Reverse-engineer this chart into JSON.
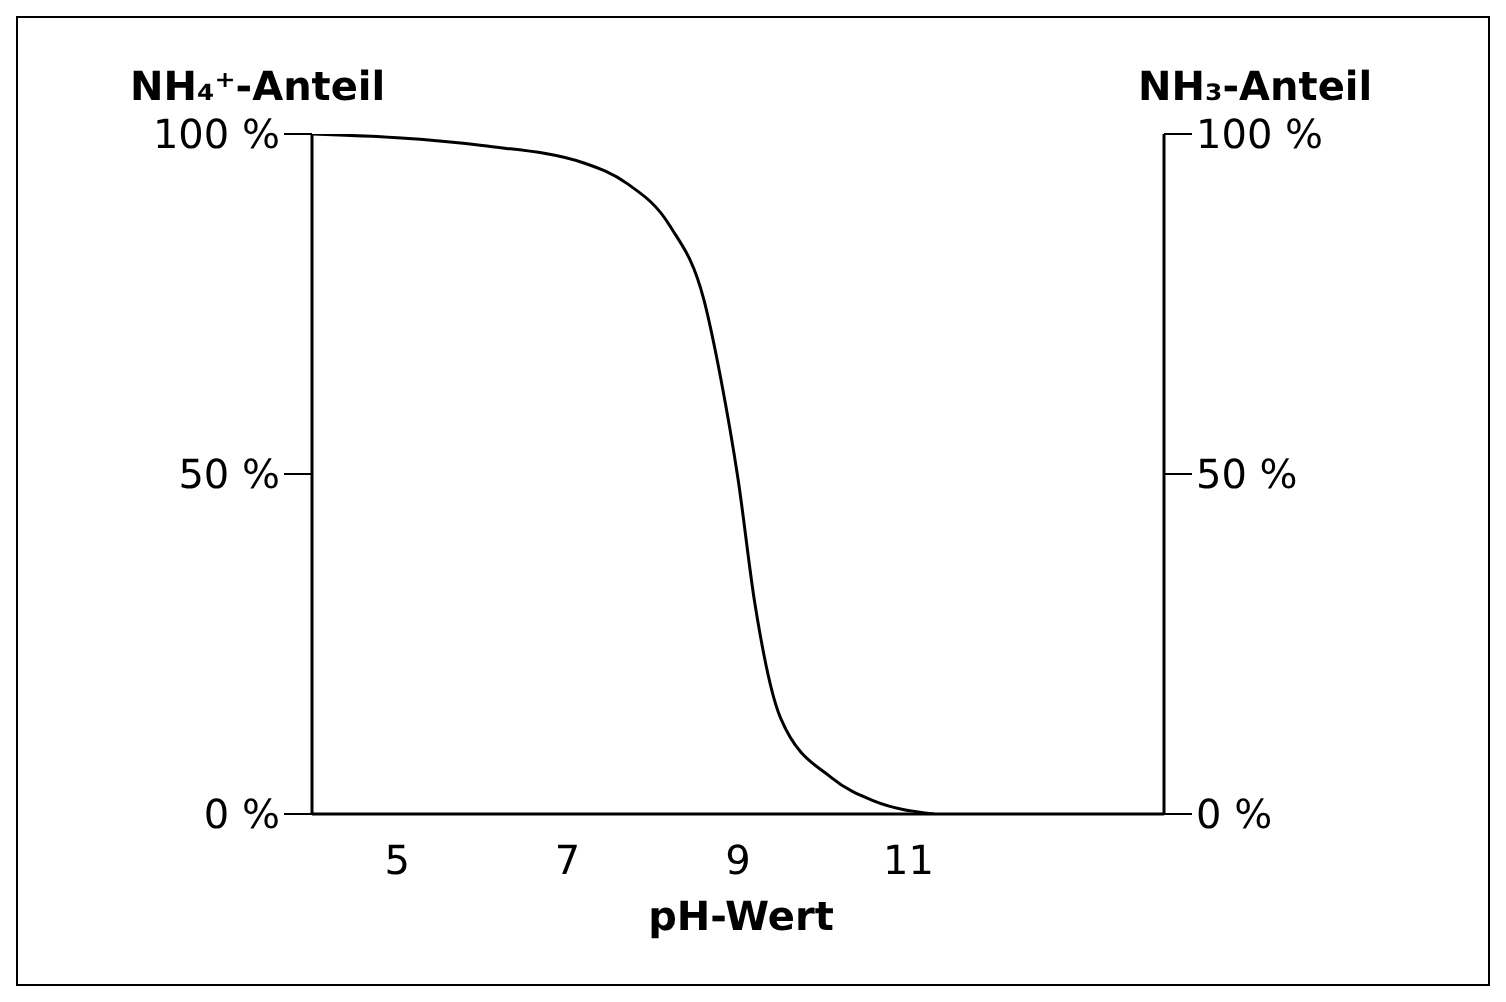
{
  "chart_data": {
    "type": "line",
    "xlabel": "pH-Wert",
    "ylabel": "NH₄⁺-Anteil",
    "y2label": "NH₃-Anteil",
    "x": [
      4,
      6,
      7.2,
      7.7,
      8.2,
      8.6,
      8.8,
      9,
      9.2,
      9.5,
      10.1,
      10.6,
      11.3
    ],
    "series": [
      {
        "color": "#000000",
        "values": [
          100,
          98.3,
          95.7,
          92.7,
          86.5,
          75.6,
          63.9,
          49.3,
          30.8,
          14.1,
          5.3,
          1.9,
          0
        ]
      }
    ],
    "xlim": [
      4,
      14
    ],
    "xticks": [
      5,
      7,
      9,
      11
    ],
    "ylim": [
      0,
      100
    ],
    "yticks": [
      {
        "value": 0,
        "label": "0 %"
      },
      {
        "value": 50,
        "label": "50 %"
      },
      {
        "value": 100,
        "label": "100 %"
      }
    ],
    "y2lim": [
      0,
      100
    ],
    "y2ticks": [
      {
        "value": 0,
        "label": "0 %"
      },
      {
        "value": 50,
        "label": "50 %"
      },
      {
        "value": 100,
        "label": "100 %"
      }
    ]
  }
}
